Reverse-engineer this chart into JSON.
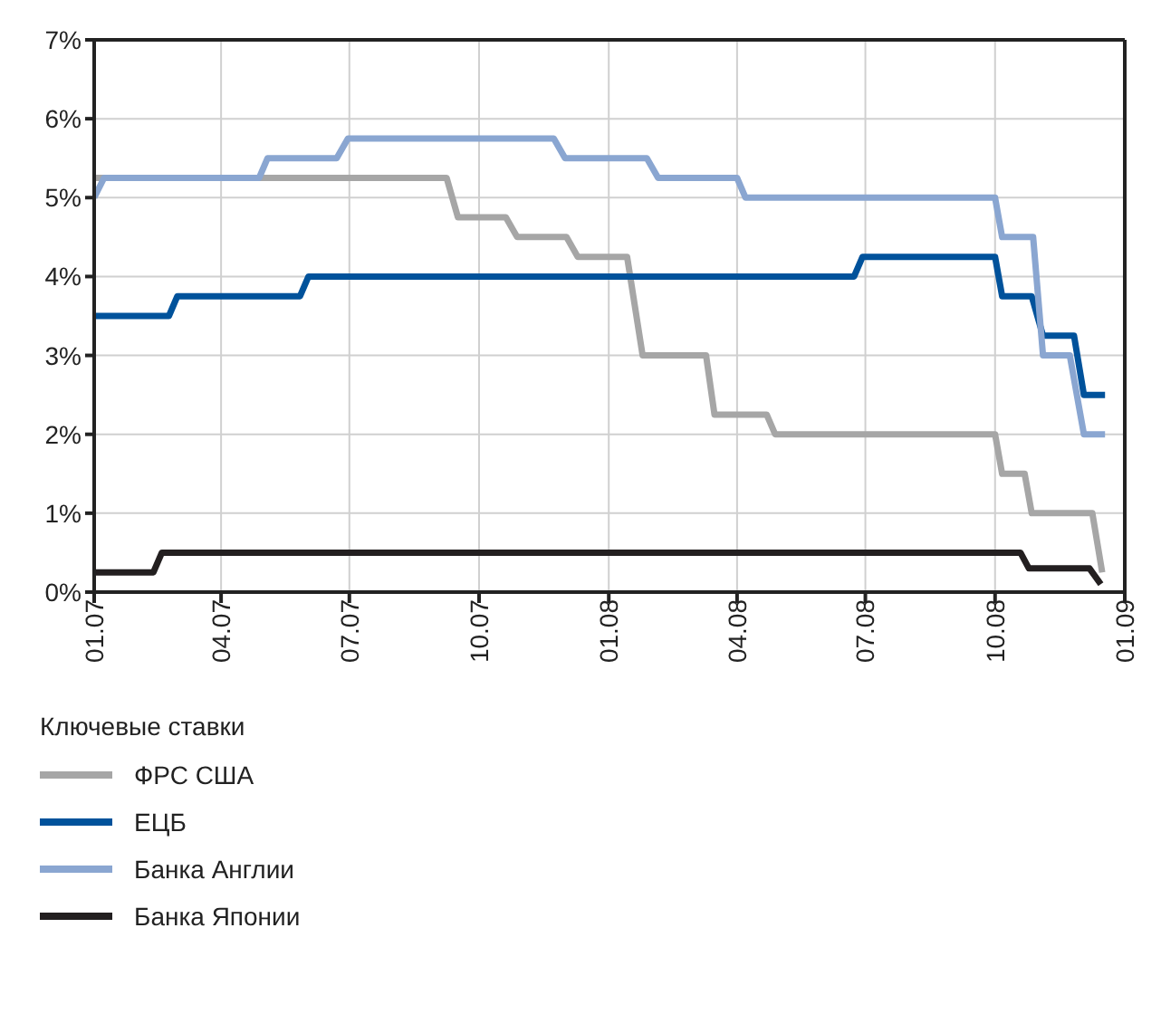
{
  "chart_data": {
    "type": "line",
    "legend_title": "Ключевые ставки",
    "xlim": [
      "2007-01-01",
      "2009-01-01"
    ],
    "xticks": [
      {
        "value": "2007-01-01",
        "label": "01.07"
      },
      {
        "value": "2007-04-01",
        "label": "04.07"
      },
      {
        "value": "2007-07-01",
        "label": "07.07"
      },
      {
        "value": "2007-10-01",
        "label": "10.07"
      },
      {
        "value": "2008-01-01",
        "label": "01.08"
      },
      {
        "value": "2008-04-01",
        "label": "04.08"
      },
      {
        "value": "2008-07-01",
        "label": "07.08"
      },
      {
        "value": "2008-10-01",
        "label": "10.08"
      },
      {
        "value": "2009-01-01",
        "label": "01.09"
      }
    ],
    "ylim": [
      0,
      7
    ],
    "yticks": [
      {
        "value": 0,
        "label": "0%"
      },
      {
        "value": 1,
        "label": "1%"
      },
      {
        "value": 2,
        "label": "2%"
      },
      {
        "value": 3,
        "label": "3%"
      },
      {
        "value": 4,
        "label": "4%"
      },
      {
        "value": 5,
        "label": "5%"
      },
      {
        "value": 6,
        "label": "6%"
      },
      {
        "value": 7,
        "label": "7%"
      }
    ],
    "grid": true,
    "legend": "bottom",
    "marker": "none",
    "line_style": "solid",
    "series": [
      {
        "name": "ФРС США",
        "color": "#a6a6a6",
        "x": [
          "2007-01-01",
          "2007-09-08",
          "2007-09-16",
          "2007-10-20",
          "2007-10-28",
          "2007-12-02",
          "2007-12-10",
          "2008-01-14",
          "2008-01-25",
          "2008-03-10",
          "2008-03-16",
          "2008-04-22",
          "2008-04-28",
          "2008-10-01",
          "2008-10-06",
          "2008-10-22",
          "2008-10-27",
          "2008-12-09",
          "2008-12-16"
        ],
        "values": [
          5.25,
          5.25,
          4.75,
          4.75,
          4.5,
          4.5,
          4.25,
          4.25,
          3.0,
          3.0,
          2.25,
          2.25,
          2.0,
          2.0,
          1.5,
          1.5,
          1.0,
          1.0,
          0.25
        ]
      },
      {
        "name": "ЕЦБ",
        "color": "#00529b",
        "x": [
          "2007-01-01",
          "2007-02-23",
          "2007-03-01",
          "2007-05-27",
          "2007-06-02",
          "2008-06-23",
          "2008-06-29",
          "2008-10-01",
          "2008-10-06",
          "2008-10-27",
          "2008-11-04",
          "2008-11-26",
          "2008-12-03",
          "2008-12-18"
        ],
        "values": [
          3.5,
          3.5,
          3.75,
          3.75,
          4.0,
          4.0,
          4.25,
          4.25,
          3.75,
          3.75,
          3.25,
          3.25,
          2.5,
          2.5
        ]
      },
      {
        "name": "Банка Англии",
        "color": "#8aa6d1",
        "x": [
          "2007-01-01",
          "2007-01-08",
          "2007-04-28",
          "2007-05-04",
          "2007-06-22",
          "2007-06-30",
          "2007-11-23",
          "2007-12-01",
          "2008-01-28",
          "2008-02-05",
          "2008-04-01",
          "2008-04-07",
          "2008-10-01",
          "2008-10-06",
          "2008-10-28",
          "2008-11-04",
          "2008-11-23",
          "2008-12-03",
          "2008-12-18"
        ],
        "values": [
          5.0,
          5.25,
          5.25,
          5.5,
          5.5,
          5.75,
          5.75,
          5.5,
          5.5,
          5.25,
          5.25,
          5.0,
          5.0,
          4.5,
          4.5,
          3.0,
          3.0,
          2.0,
          2.0
        ]
      },
      {
        "name": "Банка Японии",
        "color": "#231f20",
        "x": [
          "2007-01-01",
          "2007-02-12",
          "2007-02-18",
          "2008-10-19",
          "2008-10-25",
          "2008-12-07",
          "2008-12-15"
        ],
        "values": [
          0.25,
          0.25,
          0.5,
          0.5,
          0.3,
          0.3,
          0.1
        ]
      }
    ]
  }
}
